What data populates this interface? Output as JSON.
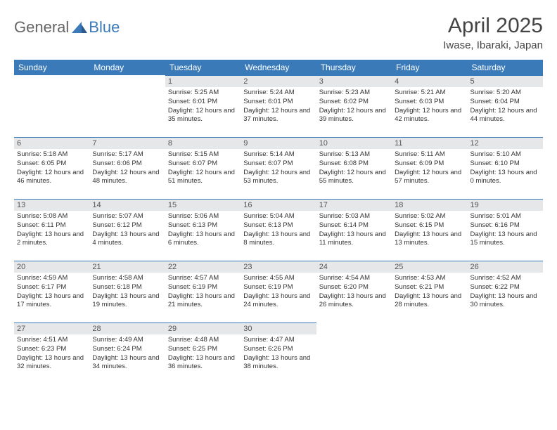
{
  "logo": {
    "part1": "General",
    "part2": "Blue"
  },
  "title": "April 2025",
  "location": "Iwase, Ibaraki, Japan",
  "colors": {
    "header_bg": "#3a7ab8",
    "header_text": "#ffffff",
    "daynum_bg": "#e6e7e8",
    "border": "#3a7ab8",
    "body_text": "#333333"
  },
  "weekdays": [
    "Sunday",
    "Monday",
    "Tuesday",
    "Wednesday",
    "Thursday",
    "Friday",
    "Saturday"
  ],
  "weeks": [
    [
      null,
      null,
      {
        "n": "1",
        "sr": "5:25 AM",
        "ss": "6:01 PM",
        "dl": "12 hours and 35 minutes."
      },
      {
        "n": "2",
        "sr": "5:24 AM",
        "ss": "6:01 PM",
        "dl": "12 hours and 37 minutes."
      },
      {
        "n": "3",
        "sr": "5:23 AM",
        "ss": "6:02 PM",
        "dl": "12 hours and 39 minutes."
      },
      {
        "n": "4",
        "sr": "5:21 AM",
        "ss": "6:03 PM",
        "dl": "12 hours and 42 minutes."
      },
      {
        "n": "5",
        "sr": "5:20 AM",
        "ss": "6:04 PM",
        "dl": "12 hours and 44 minutes."
      }
    ],
    [
      {
        "n": "6",
        "sr": "5:18 AM",
        "ss": "6:05 PM",
        "dl": "12 hours and 46 minutes."
      },
      {
        "n": "7",
        "sr": "5:17 AM",
        "ss": "6:06 PM",
        "dl": "12 hours and 48 minutes."
      },
      {
        "n": "8",
        "sr": "5:15 AM",
        "ss": "6:07 PM",
        "dl": "12 hours and 51 minutes."
      },
      {
        "n": "9",
        "sr": "5:14 AM",
        "ss": "6:07 PM",
        "dl": "12 hours and 53 minutes."
      },
      {
        "n": "10",
        "sr": "5:13 AM",
        "ss": "6:08 PM",
        "dl": "12 hours and 55 minutes."
      },
      {
        "n": "11",
        "sr": "5:11 AM",
        "ss": "6:09 PM",
        "dl": "12 hours and 57 minutes."
      },
      {
        "n": "12",
        "sr": "5:10 AM",
        "ss": "6:10 PM",
        "dl": "13 hours and 0 minutes."
      }
    ],
    [
      {
        "n": "13",
        "sr": "5:08 AM",
        "ss": "6:11 PM",
        "dl": "13 hours and 2 minutes."
      },
      {
        "n": "14",
        "sr": "5:07 AM",
        "ss": "6:12 PM",
        "dl": "13 hours and 4 minutes."
      },
      {
        "n": "15",
        "sr": "5:06 AM",
        "ss": "6:13 PM",
        "dl": "13 hours and 6 minutes."
      },
      {
        "n": "16",
        "sr": "5:04 AM",
        "ss": "6:13 PM",
        "dl": "13 hours and 8 minutes."
      },
      {
        "n": "17",
        "sr": "5:03 AM",
        "ss": "6:14 PM",
        "dl": "13 hours and 11 minutes."
      },
      {
        "n": "18",
        "sr": "5:02 AM",
        "ss": "6:15 PM",
        "dl": "13 hours and 13 minutes."
      },
      {
        "n": "19",
        "sr": "5:01 AM",
        "ss": "6:16 PM",
        "dl": "13 hours and 15 minutes."
      }
    ],
    [
      {
        "n": "20",
        "sr": "4:59 AM",
        "ss": "6:17 PM",
        "dl": "13 hours and 17 minutes."
      },
      {
        "n": "21",
        "sr": "4:58 AM",
        "ss": "6:18 PM",
        "dl": "13 hours and 19 minutes."
      },
      {
        "n": "22",
        "sr": "4:57 AM",
        "ss": "6:19 PM",
        "dl": "13 hours and 21 minutes."
      },
      {
        "n": "23",
        "sr": "4:55 AM",
        "ss": "6:19 PM",
        "dl": "13 hours and 24 minutes."
      },
      {
        "n": "24",
        "sr": "4:54 AM",
        "ss": "6:20 PM",
        "dl": "13 hours and 26 minutes."
      },
      {
        "n": "25",
        "sr": "4:53 AM",
        "ss": "6:21 PM",
        "dl": "13 hours and 28 minutes."
      },
      {
        "n": "26",
        "sr": "4:52 AM",
        "ss": "6:22 PM",
        "dl": "13 hours and 30 minutes."
      }
    ],
    [
      {
        "n": "27",
        "sr": "4:51 AM",
        "ss": "6:23 PM",
        "dl": "13 hours and 32 minutes."
      },
      {
        "n": "28",
        "sr": "4:49 AM",
        "ss": "6:24 PM",
        "dl": "13 hours and 34 minutes."
      },
      {
        "n": "29",
        "sr": "4:48 AM",
        "ss": "6:25 PM",
        "dl": "13 hours and 36 minutes."
      },
      {
        "n": "30",
        "sr": "4:47 AM",
        "ss": "6:26 PM",
        "dl": "13 hours and 38 minutes."
      },
      null,
      null,
      null
    ]
  ],
  "labels": {
    "sunrise": "Sunrise:",
    "sunset": "Sunset:",
    "daylight": "Daylight:"
  }
}
